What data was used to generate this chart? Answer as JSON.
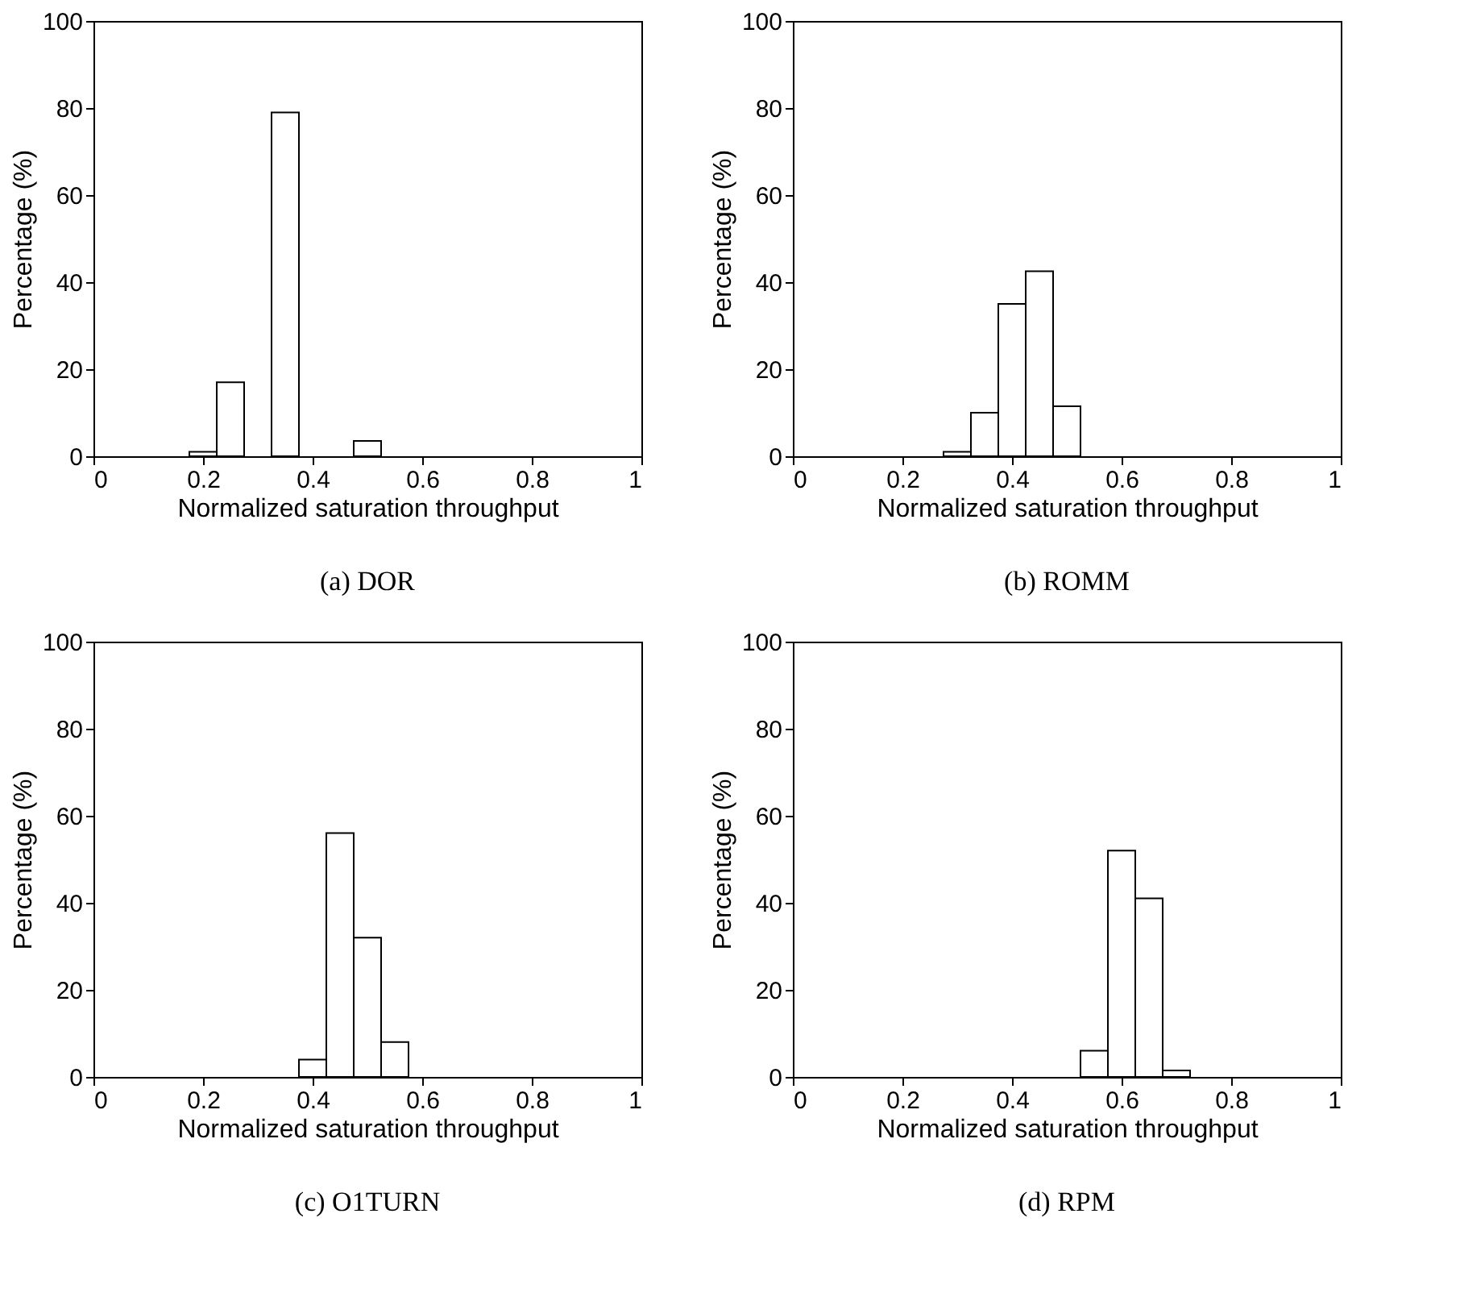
{
  "chart_data": [
    {
      "type": "histogram",
      "title": "(a)  DOR",
      "xlabel": "Normalized saturation throughput",
      "ylabel": "Percentage (%)",
      "color": "#ffffff",
      "xlim": [
        0,
        1
      ],
      "ylim": [
        0,
        100
      ],
      "xticks": [
        0,
        0.2,
        0.4,
        0.6,
        0.8,
        1
      ],
      "yticks": [
        0,
        20,
        40,
        60,
        80,
        100
      ],
      "bins": [
        0.025,
        0.075,
        0.125,
        0.175,
        0.225,
        0.275,
        0.325,
        0.375,
        0.425,
        0.475,
        0.525,
        0.575,
        0.625,
        0.675,
        0.725,
        0.775,
        0.825,
        0.875,
        0.925,
        0.975
      ],
      "values": [
        0,
        0,
        0,
        1,
        17,
        0,
        79,
        0,
        0,
        3.5,
        0,
        0,
        0,
        0,
        0,
        0,
        0,
        0,
        0
      ]
    },
    {
      "type": "histogram",
      "title": "(b)  ROMM",
      "xlabel": "Normalized saturation throughput",
      "ylabel": "Percentage (%)",
      "color": "#ffffff",
      "xlim": [
        0,
        1
      ],
      "ylim": [
        0,
        100
      ],
      "xticks": [
        0,
        0.2,
        0.4,
        0.6,
        0.8,
        1
      ],
      "yticks": [
        0,
        20,
        40,
        60,
        80,
        100
      ],
      "bins": [
        0.025,
        0.075,
        0.125,
        0.175,
        0.225,
        0.275,
        0.325,
        0.375,
        0.425,
        0.475,
        0.525,
        0.575,
        0.625,
        0.675,
        0.725,
        0.775,
        0.825,
        0.875,
        0.925,
        0.975
      ],
      "values": [
        0,
        0,
        0,
        0,
        0,
        1,
        10,
        35,
        42.5,
        11.5,
        null,
        0,
        0,
        0,
        0,
        0,
        0,
        0,
        0
      ]
    },
    {
      "type": "histogram",
      "title": "(c)  O1TURN",
      "xlabel": "Normalized saturation throughput",
      "ylabel": "Percentage (%)",
      "color": "#ffffff",
      "xlim": [
        0,
        1
      ],
      "ylim": [
        0,
        100
      ],
      "xticks": [
        0,
        0.2,
        0.4,
        0.6,
        0.8,
        1
      ],
      "yticks": [
        0,
        20,
        40,
        60,
        80,
        100
      ],
      "bins": [
        0.025,
        0.075,
        0.125,
        0.175,
        0.225,
        0.275,
        0.325,
        0.375,
        0.425,
        0.475,
        0.525,
        0.575,
        0.625,
        0.675,
        0.725,
        0.775,
        0.825,
        0.875,
        0.925,
        0.975
      ],
      "values": [
        0,
        0,
        0,
        0,
        0,
        0,
        0,
        4,
        56,
        32,
        8,
        null,
        0,
        0,
        0,
        0,
        0,
        0,
        0
      ]
    },
    {
      "type": "histogram",
      "title": "(d)  RPM",
      "xlabel": "Normalized saturation throughput",
      "ylabel": "Percentage (%)",
      "color": "#ffffff",
      "xlim": [
        0,
        1
      ],
      "ylim": [
        0,
        100
      ],
      "xticks": [
        0,
        0.2,
        0.4,
        0.6,
        0.8,
        1
      ],
      "yticks": [
        0,
        20,
        40,
        60,
        80,
        100
      ],
      "bins": [
        0.025,
        0.075,
        0.125,
        0.175,
        0.225,
        0.275,
        0.325,
        0.375,
        0.425,
        0.475,
        0.525,
        0.575,
        0.625,
        0.675,
        0.725,
        0.775,
        0.825,
        0.875,
        0.925,
        0.975
      ],
      "values": [
        0,
        0,
        0,
        0,
        0,
        0,
        0,
        0,
        0,
        0,
        6,
        52,
        41,
        1.5,
        0,
        0,
        0,
        0,
        0
      ]
    }
  ]
}
